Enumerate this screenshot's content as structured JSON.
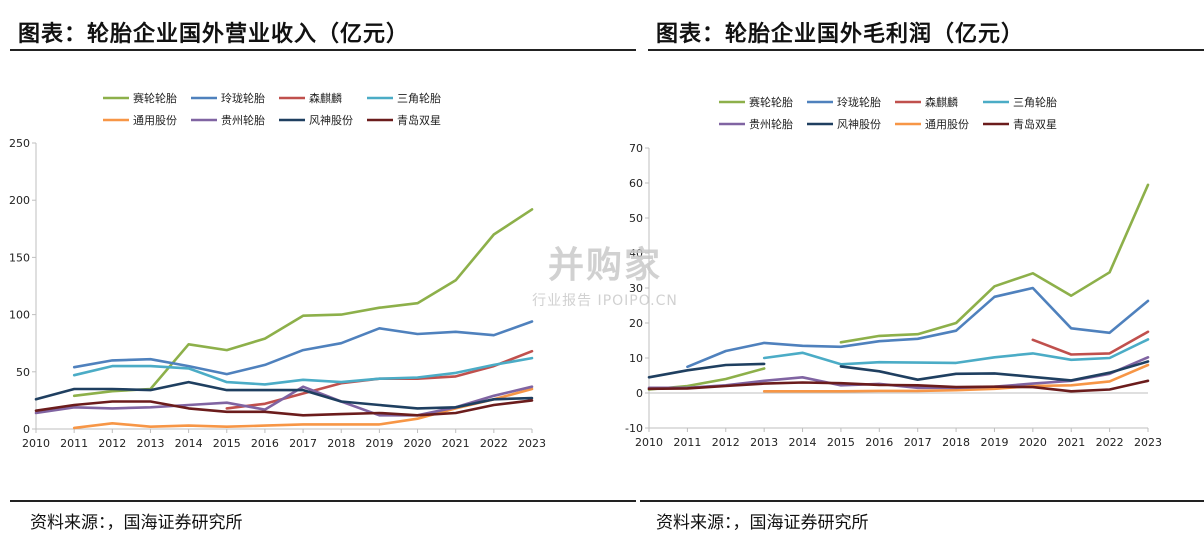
{
  "left": {
    "title": "图表：轮胎企业国外营业收入（亿元）",
    "source": "资料来源：，国海证券研究所"
  },
  "right": {
    "title": "图表：轮胎企业国外毛利润（亿元）",
    "source": "资料来源：，国海证券研究所"
  },
  "watermark": {
    "main": "并购家",
    "sub": "行业报告 IPOIPO.CN"
  },
  "colors": {
    "赛轮轮胎": "#8db04a",
    "玲珑轮胎": "#4f81bd",
    "森麒麟": "#c0504d",
    "三角轮胎": "#4bacc6",
    "通用股份": "#f79646",
    "贵州轮胎": "#8064a2",
    "风神股份": "#1f3f60",
    "青岛双星": "#6b1c1c"
  },
  "chart_data": [
    {
      "type": "line",
      "title": "图表：轮胎企业国外营业收入（亿元）",
      "x": [
        "2010",
        "2011",
        "2012",
        "2013",
        "2014",
        "2015",
        "2016",
        "2017",
        "2018",
        "2019",
        "2020",
        "2021",
        "2022",
        "2023"
      ],
      "ylim": [
        0,
        250
      ],
      "yticks": [
        0,
        50,
        100,
        150,
        200,
        250
      ],
      "ytick_labels": [
        "0",
        "50",
        "100",
        "150",
        "200",
        "250"
      ],
      "grid": false,
      "legend_position": "top",
      "series": [
        {
          "name": "赛轮轮胎",
          "values": [
            null,
            29,
            33,
            35,
            74,
            69,
            79,
            99,
            100,
            106,
            110,
            130,
            170,
            192
          ]
        },
        {
          "name": "玲珑轮胎",
          "values": [
            null,
            54,
            60,
            61,
            55,
            48,
            56,
            69,
            75,
            88,
            83,
            85,
            82,
            94
          ]
        },
        {
          "name": "森麒麟",
          "values": [
            null,
            null,
            null,
            null,
            null,
            18,
            22,
            31,
            40,
            44,
            44,
            46,
            55,
            68
          ]
        },
        {
          "name": "三角轮胎",
          "values": [
            null,
            47,
            55,
            55,
            53,
            41,
            39,
            43,
            41,
            44,
            45,
            49,
            56,
            62
          ]
        },
        {
          "name": "通用股份",
          "values": [
            null,
            1,
            5,
            2,
            3,
            2,
            3,
            4,
            4,
            4,
            9,
            18,
            26,
            35
          ]
        },
        {
          "name": "贵州轮胎",
          "values": [
            14,
            19,
            18,
            19,
            21,
            23,
            17,
            37,
            24,
            12,
            12,
            19,
            29,
            37
          ]
        },
        {
          "name": "风神股份",
          "values": [
            26,
            35,
            35,
            34,
            41,
            34,
            34,
            34,
            24,
            21,
            18,
            19,
            26,
            27
          ]
        },
        {
          "name": "青岛双星",
          "values": [
            16,
            21,
            24,
            24,
            18,
            15,
            15,
            12,
            13,
            14,
            12,
            14,
            21,
            25
          ]
        }
      ]
    },
    {
      "type": "line",
      "title": "图表：轮胎企业国外毛利润（亿元）",
      "x": [
        "2010",
        "2011",
        "2012",
        "2013",
        "2014",
        "2015",
        "2016",
        "2017",
        "2018",
        "2019",
        "2020",
        "2021",
        "2022",
        "2023"
      ],
      "ylim": [
        -10,
        70
      ],
      "yticks": [
        -10,
        0,
        10,
        20,
        30,
        40,
        50,
        60,
        70
      ],
      "ytick_labels": [
        "-10",
        "0",
        "10",
        "20",
        "30",
        "40",
        "50",
        "60",
        "70"
      ],
      "grid": false,
      "legend_position": "top",
      "series": [
        {
          "name": "赛轮轮胎",
          "values": [
            1,
            2,
            4,
            7,
            null,
            14.5,
            16.3,
            16.8,
            20,
            30.5,
            34.2,
            27.8,
            34.5,
            59.5
          ]
        },
        {
          "name": "玲珑轮胎",
          "values": [
            null,
            7.5,
            12,
            14.3,
            13.5,
            13.2,
            14.8,
            15.5,
            17.8,
            27.5,
            30,
            18.5,
            17.2,
            26.3
          ]
        },
        {
          "name": "森麒麟",
          "values": [
            null,
            null,
            null,
            null,
            null,
            null,
            null,
            null,
            null,
            null,
            15.2,
            11,
            11.3,
            17.5
          ]
        },
        {
          "name": "三角轮胎",
          "values": [
            null,
            null,
            null,
            10,
            11.5,
            8.2,
            8.8,
            8.7,
            8.6,
            10.2,
            11.3,
            9.5,
            10,
            15.3
          ]
        },
        {
          "name": "通用股份",
          "values": [
            null,
            null,
            null,
            0.5,
            0.5,
            0.5,
            0.6,
            0.6,
            0.8,
            1.2,
            2,
            2.2,
            3.3,
            8
          ]
        },
        {
          "name": "贵州轮胎",
          "values": [
            1.5,
            1.5,
            2.2,
            3.5,
            4.5,
            2.2,
            2.6,
            1.5,
            1.5,
            1.8,
            2.7,
            3.5,
            5.5,
            10.2
          ]
        },
        {
          "name": "风神股份",
          "values": [
            4.5,
            6.5,
            8,
            8.3,
            null,
            7.6,
            6.2,
            3.8,
            5.5,
            5.6,
            4.6,
            3.6,
            5.8,
            9
          ]
        },
        {
          "name": "青岛双星",
          "values": [
            1.2,
            1.3,
            2,
            2.7,
            3,
            2.8,
            2.3,
            2.2,
            1.7,
            1.8,
            1.7,
            0.5,
            1,
            3.5
          ]
        }
      ]
    }
  ]
}
